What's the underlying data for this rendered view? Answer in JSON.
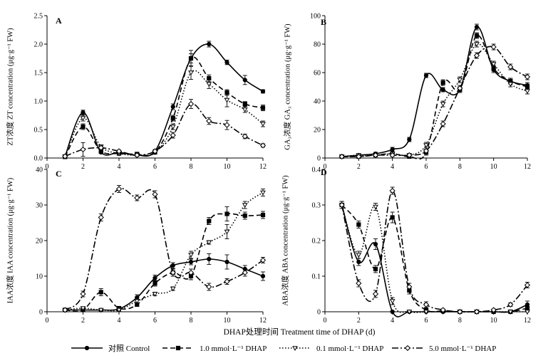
{
  "figure": {
    "xlabel": "DHAP处理时间 Treatment time of DHAP (d)"
  },
  "legend": {
    "items": [
      {
        "key": "control",
        "label": "对照 Control"
      },
      {
        "key": "d1",
        "label": "1.0 mmol·L⁻¹ DHAP"
      },
      {
        "key": "d01",
        "label": "0.1 mmol·L⁻¹ DHAP"
      },
      {
        "key": "d5",
        "label": "5.0 mmol·L⁻¹ DHAP"
      }
    ]
  },
  "chart_data": [
    {
      "type": "line",
      "panel": "A",
      "ylabel": "ZT浓度 ZT concentration (μg·g⁻¹ FW)",
      "xlim": [
        0,
        12
      ],
      "ylim": [
        0,
        2.5
      ],
      "xticks": [
        0,
        2,
        4,
        6,
        8,
        10,
        12
      ],
      "yticks": [
        0.0,
        0.5,
        1.0,
        1.5,
        2.0,
        2.5
      ],
      "ytick_labels": [
        "0.0",
        "0.5",
        "1.0",
        "1.5",
        "2.0",
        "2.5"
      ],
      "series": [
        {
          "key": "control",
          "x": [
            1,
            2,
            3,
            4,
            5,
            6,
            7,
            8,
            9,
            10,
            11,
            12
          ],
          "y": [
            0.03,
            0.8,
            0.1,
            0.1,
            0.05,
            0.12,
            0.9,
            1.75,
            2.0,
            1.68,
            1.37,
            1.17
          ],
          "err": [
            0.02,
            0.04,
            0.02,
            0.02,
            0.02,
            0.03,
            0.05,
            0.08,
            0.05,
            0.04,
            0.08,
            0.03
          ]
        },
        {
          "key": "d1",
          "x": [
            1,
            2,
            3,
            4,
            5,
            6,
            7,
            8,
            9,
            10,
            11,
            12
          ],
          "y": [
            0.02,
            0.55,
            0.12,
            0.08,
            0.07,
            0.1,
            0.7,
            1.75,
            1.4,
            1.15,
            0.95,
            0.88
          ],
          "err": [
            0.02,
            0.05,
            0.02,
            0.02,
            0.02,
            0.02,
            0.05,
            0.14,
            0.06,
            0.05,
            0.04,
            0.05
          ]
        },
        {
          "key": "d01",
          "x": [
            1,
            2,
            3,
            4,
            5,
            6,
            7,
            8,
            9,
            10,
            11,
            12
          ],
          "y": [
            0.03,
            0.7,
            0.2,
            0.08,
            0.05,
            0.1,
            0.55,
            1.5,
            1.3,
            1.02,
            0.85,
            0.6
          ],
          "err": [
            0.02,
            0.05,
            0.03,
            0.02,
            0.02,
            0.02,
            0.05,
            0.12,
            0.08,
            0.12,
            0.05,
            0.05
          ]
        },
        {
          "key": "d5",
          "x": [
            1,
            2,
            3,
            4,
            5,
            6,
            7,
            8,
            9,
            10,
            11,
            12
          ],
          "y": [
            0.03,
            0.15,
            0.18,
            0.12,
            0.05,
            0.12,
            0.4,
            0.95,
            0.65,
            0.58,
            0.38,
            0.22
          ],
          "err": [
            0.02,
            0.12,
            0.03,
            0.02,
            0.02,
            0.03,
            0.05,
            0.08,
            0.06,
            0.08,
            0.04,
            0.03
          ]
        }
      ]
    },
    {
      "type": "line",
      "panel": "B",
      "ylabel": "GA₃浓度 GA₃ concentration (μg·g⁻¹ FW)",
      "xlim": [
        0,
        12
      ],
      "ylim": [
        0,
        100
      ],
      "xticks": [
        0,
        2,
        4,
        6,
        8,
        10,
        12
      ],
      "yticks": [
        0,
        20,
        40,
        60,
        80,
        100
      ],
      "ytick_labels": [
        "0",
        "20",
        "40",
        "60",
        "80",
        "100"
      ],
      "series": [
        {
          "key": "control",
          "x": [
            1,
            2,
            3,
            4,
            5,
            6,
            7,
            8,
            9,
            10,
            11,
            12
          ],
          "y": [
            1,
            2,
            3,
            6,
            13,
            58,
            48,
            48,
            92,
            62,
            54,
            51
          ],
          "err": [
            0.5,
            0.8,
            1,
            1.5,
            1.5,
            1.5,
            1.5,
            2,
            2,
            2,
            2,
            2
          ]
        },
        {
          "key": "d1",
          "x": [
            1,
            2,
            3,
            4,
            5,
            6,
            7,
            8,
            9,
            10,
            11,
            12
          ],
          "y": [
            1,
            1,
            2,
            3,
            1,
            4,
            53,
            48,
            86,
            63,
            54,
            50
          ],
          "err": [
            0.5,
            0.5,
            1,
            1,
            0.5,
            2,
            2,
            2,
            2,
            2,
            2,
            2
          ]
        },
        {
          "key": "d01",
          "x": [
            1,
            2,
            3,
            4,
            5,
            6,
            7,
            8,
            9,
            10,
            11,
            12
          ],
          "y": [
            1,
            2,
            2,
            3,
            2,
            9,
            38,
            55,
            80,
            66,
            52,
            47
          ],
          "err": [
            0.5,
            0.8,
            1,
            1,
            0.5,
            2,
            2,
            2,
            2,
            2,
            2,
            2
          ]
        },
        {
          "key": "d5",
          "x": [
            1,
            2,
            3,
            4,
            5,
            6,
            7,
            8,
            9,
            10,
            11,
            12
          ],
          "y": [
            1,
            1,
            2,
            2,
            2,
            5,
            24,
            49,
            72,
            78,
            64,
            57
          ],
          "err": [
            0.5,
            0.5,
            1,
            1,
            0.5,
            1,
            2,
            2,
            2,
            2,
            2,
            2
          ]
        }
      ]
    },
    {
      "type": "line",
      "panel": "C",
      "ylabel": "IAA浓度 IAA concentration (μg·g⁻¹ FW)",
      "xlim": [
        0,
        12
      ],
      "ylim": [
        0,
        40
      ],
      "xticks": [
        0,
        2,
        4,
        6,
        8,
        10,
        12
      ],
      "yticks": [
        0,
        10,
        20,
        30,
        40
      ],
      "ytick_labels": [
        "0",
        "10",
        "20",
        "30",
        "40"
      ],
      "series": [
        {
          "key": "control",
          "x": [
            1,
            2,
            3,
            4,
            5,
            6,
            7,
            8,
            9,
            10,
            11,
            12
          ],
          "y": [
            0.5,
            0.5,
            0.5,
            0.8,
            4,
            9.5,
            13,
            14,
            14.8,
            14,
            12,
            10
          ],
          "err": [
            0.3,
            0.3,
            0.3,
            0.3,
            0.8,
            0.8,
            0.8,
            0.8,
            1.5,
            2,
            1,
            1.2
          ]
        },
        {
          "key": "d1",
          "x": [
            1,
            2,
            3,
            4,
            5,
            6,
            7,
            8,
            9,
            10,
            11,
            12
          ],
          "y": [
            0.5,
            0.5,
            5.5,
            1,
            2,
            8,
            11,
            10,
            25.5,
            27.5,
            27,
            27.2
          ],
          "err": [
            0.3,
            0.3,
            1,
            0.3,
            0.5,
            0.8,
            1,
            1,
            1,
            2,
            1,
            1
          ]
        },
        {
          "key": "d01",
          "x": [
            1,
            2,
            3,
            4,
            5,
            6,
            7,
            8,
            9,
            10,
            11,
            12
          ],
          "y": [
            0.5,
            1,
            0.5,
            0.5,
            3,
            5,
            6.5,
            16,
            19.5,
            22.5,
            30,
            33.5
          ],
          "err": [
            0.3,
            0.3,
            0.3,
            0.3,
            0.5,
            0.5,
            0.5,
            1,
            0.5,
            2,
            1,
            1
          ]
        },
        {
          "key": "d5",
          "x": [
            1,
            2,
            3,
            4,
            5,
            6,
            7,
            8,
            9,
            10,
            11,
            12
          ],
          "y": [
            0.5,
            5,
            26.5,
            34.5,
            32,
            33,
            11,
            11,
            7,
            8.5,
            11,
            14.5
          ],
          "err": [
            0.3,
            0.8,
            1,
            1,
            0.8,
            1,
            1,
            1,
            1,
            0.8,
            1,
            0.8
          ]
        }
      ]
    },
    {
      "type": "line",
      "panel": "D",
      "ylabel": "ABA浓度 ABA concentration (μg·g⁻¹ FW)",
      "xlim": [
        0,
        12
      ],
      "ylim": [
        0,
        0.4
      ],
      "xticks": [
        0,
        2,
        4,
        6,
        8,
        10,
        12
      ],
      "yticks": [
        0,
        0.1,
        0.2,
        0.3,
        0.4
      ],
      "ytick_labels": [
        "0",
        "0.1",
        "0.2",
        "0.3",
        "0.4"
      ],
      "series": [
        {
          "key": "control",
          "x": [
            1,
            2,
            3,
            4,
            5,
            6,
            7,
            8,
            9,
            10,
            11,
            12
          ],
          "y": [
            0.3,
            0.14,
            0.19,
            0.0,
            0.0,
            0.0,
            0.0,
            0.0,
            0.0,
            0.0,
            0.0,
            0.02
          ],
          "err": [
            0.01,
            0.01,
            0.015,
            0.002,
            0.002,
            0.002,
            0.002,
            0.002,
            0.002,
            0.002,
            0.002,
            0.01
          ]
        },
        {
          "key": "d1",
          "x": [
            1,
            2,
            3,
            4,
            5,
            6,
            7,
            8,
            9,
            10,
            11,
            12
          ],
          "y": [
            0.3,
            0.245,
            0.12,
            0.265,
            0.06,
            0.005,
            0.002,
            0.0,
            0.0,
            0.0,
            0.0,
            0.01
          ],
          "err": [
            0.01,
            0.01,
            0.01,
            0.015,
            0.01,
            0.005,
            0.002,
            0.002,
            0.002,
            0.002,
            0.002,
            0.005
          ]
        },
        {
          "key": "d01",
          "x": [
            1,
            2,
            3,
            4,
            5,
            6,
            7,
            8,
            9,
            10,
            11,
            12
          ],
          "y": [
            0.3,
            0.16,
            0.295,
            0.03,
            0.0,
            0.0,
            0.0,
            0.0,
            0.0,
            0.0,
            0.0,
            0.0
          ],
          "err": [
            0.01,
            0.01,
            0.01,
            0.01,
            0.002,
            0.002,
            0.002,
            0.002,
            0.002,
            0.002,
            0.002,
            0.002
          ]
        },
        {
          "key": "d5",
          "x": [
            1,
            2,
            3,
            4,
            5,
            6,
            7,
            8,
            9,
            10,
            11,
            12
          ],
          "y": [
            0.3,
            0.08,
            0.05,
            0.34,
            0.07,
            0.02,
            0.005,
            0.0,
            0.0,
            0.005,
            0.02,
            0.075
          ],
          "err": [
            0.01,
            0.01,
            0.01,
            0.01,
            0.01,
            0.008,
            0.003,
            0.002,
            0.002,
            0.003,
            0.005,
            0.008
          ]
        }
      ]
    }
  ]
}
